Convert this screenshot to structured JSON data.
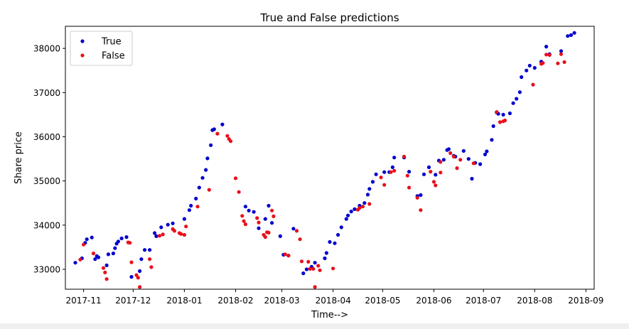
{
  "chart_data": {
    "type": "scatter",
    "title": "True and False predictions",
    "xlabel": "Time-->",
    "ylabel": "Share price",
    "xlim": [
      "2017-10-21",
      "2018-09-06"
    ],
    "ylim": [
      32550,
      38500
    ],
    "x_ticks": [
      "2017-11",
      "2017-12",
      "2018-01",
      "2018-02",
      "2018-03",
      "2018-04",
      "2018-05",
      "2018-06",
      "2018-07",
      "2018-08",
      "2018-09"
    ],
    "x_tick_dates": [
      "2017-11-01",
      "2017-12-01",
      "2018-01-01",
      "2018-02-01",
      "2018-03-01",
      "2018-04-01",
      "2018-05-01",
      "2018-06-01",
      "2018-07-01",
      "2018-08-01",
      "2018-09-01"
    ],
    "y_ticks": [
      33000,
      34000,
      35000,
      36000,
      37000,
      38000
    ],
    "grid": false,
    "legend": {
      "position": "top-left"
    },
    "series": [
      {
        "name": "True",
        "color": "#0000cc",
        "points": [
          [
            "2017-10-27",
            33150
          ],
          [
            "2017-10-31",
            33250
          ],
          [
            "2017-11-02",
            33600
          ],
          [
            "2017-11-03",
            33680
          ],
          [
            "2017-11-06",
            33720
          ],
          [
            "2017-11-08",
            33230
          ],
          [
            "2017-11-09",
            33300
          ],
          [
            "2017-11-10",
            33270
          ],
          [
            "2017-11-15",
            33090
          ],
          [
            "2017-11-16",
            33340
          ],
          [
            "2017-11-19",
            33360
          ],
          [
            "2017-11-20",
            33480
          ],
          [
            "2017-11-21",
            33580
          ],
          [
            "2017-11-22",
            33630
          ],
          [
            "2017-11-24",
            33700
          ],
          [
            "2017-11-27",
            33730
          ],
          [
            "2017-11-30",
            32830
          ],
          [
            "2017-12-05",
            32960
          ],
          [
            "2017-12-06",
            33230
          ],
          [
            "2017-12-08",
            33440
          ],
          [
            "2017-12-11",
            33440
          ],
          [
            "2017-12-14",
            33820
          ],
          [
            "2017-12-15",
            33750
          ],
          [
            "2017-12-18",
            33950
          ],
          [
            "2017-12-22",
            34010
          ],
          [
            "2017-12-25",
            34040
          ],
          [
            "2018-01-01",
            34140
          ],
          [
            "2018-01-04",
            34340
          ],
          [
            "2018-01-05",
            34440
          ],
          [
            "2018-01-08",
            34600
          ],
          [
            "2018-01-10",
            34850
          ],
          [
            "2018-01-12",
            35070
          ],
          [
            "2018-01-14",
            35250
          ],
          [
            "2018-01-15",
            35510
          ],
          [
            "2018-01-17",
            35810
          ],
          [
            "2018-01-18",
            36150
          ],
          [
            "2018-01-19",
            36170
          ],
          [
            "2018-01-24",
            36280
          ],
          [
            "2018-02-07",
            34420
          ],
          [
            "2018-02-09",
            34330
          ],
          [
            "2018-02-12",
            34300
          ],
          [
            "2018-02-15",
            33930
          ],
          [
            "2018-02-19",
            34140
          ],
          [
            "2018-02-21",
            34440
          ],
          [
            "2018-02-23",
            34050
          ],
          [
            "2018-02-28",
            33750
          ],
          [
            "2018-03-02",
            33330
          ],
          [
            "2018-03-05",
            33310
          ],
          [
            "2018-03-08",
            33920
          ],
          [
            "2018-03-14",
            32910
          ],
          [
            "2018-03-16",
            33000
          ],
          [
            "2018-03-19",
            33060
          ],
          [
            "2018-03-21",
            33150
          ],
          [
            "2018-03-27",
            33250
          ],
          [
            "2018-03-28",
            33370
          ],
          [
            "2018-03-30",
            33620
          ],
          [
            "2018-04-02",
            33590
          ],
          [
            "2018-04-04",
            33780
          ],
          [
            "2018-04-06",
            33950
          ],
          [
            "2018-04-09",
            34140
          ],
          [
            "2018-04-10",
            34220
          ],
          [
            "2018-04-12",
            34310
          ],
          [
            "2018-04-14",
            34360
          ],
          [
            "2018-04-17",
            34440
          ],
          [
            "2018-04-20",
            34500
          ],
          [
            "2018-04-22",
            34690
          ],
          [
            "2018-04-23",
            34820
          ],
          [
            "2018-04-25",
            34980
          ],
          [
            "2018-04-27",
            35150
          ],
          [
            "2018-05-02",
            35200
          ],
          [
            "2018-05-05",
            35200
          ],
          [
            "2018-05-07",
            35310
          ],
          [
            "2018-05-08",
            35530
          ],
          [
            "2018-05-14",
            35530
          ],
          [
            "2018-05-17",
            35210
          ],
          [
            "2018-05-22",
            34660
          ],
          [
            "2018-05-24",
            34680
          ],
          [
            "2018-05-26",
            35150
          ],
          [
            "2018-05-29",
            35310
          ],
          [
            "2018-06-02",
            35140
          ],
          [
            "2018-06-04",
            35460
          ],
          [
            "2018-06-07",
            35480
          ],
          [
            "2018-06-09",
            35700
          ],
          [
            "2018-06-10",
            35720
          ],
          [
            "2018-06-13",
            35570
          ],
          [
            "2018-06-14",
            35550
          ],
          [
            "2018-06-19",
            35680
          ],
          [
            "2018-06-22",
            35500
          ],
          [
            "2018-06-24",
            35050
          ],
          [
            "2018-06-26",
            35410
          ],
          [
            "2018-06-29",
            35380
          ],
          [
            "2018-07-02",
            35600
          ],
          [
            "2018-07-03",
            35670
          ],
          [
            "2018-07-06",
            35930
          ],
          [
            "2018-07-07",
            36240
          ],
          [
            "2018-07-09",
            36550
          ],
          [
            "2018-07-10",
            36520
          ],
          [
            "2018-07-13",
            36500
          ],
          [
            "2018-07-17",
            36530
          ],
          [
            "2018-07-19",
            36760
          ],
          [
            "2018-07-21",
            36860
          ],
          [
            "2018-07-23",
            37010
          ],
          [
            "2018-07-24",
            37350
          ],
          [
            "2018-07-27",
            37500
          ],
          [
            "2018-07-29",
            37610
          ],
          [
            "2018-08-01",
            37560
          ],
          [
            "2018-08-05",
            37700
          ],
          [
            "2018-08-08",
            38040
          ],
          [
            "2018-08-10",
            37870
          ],
          [
            "2018-08-17",
            37940
          ],
          [
            "2018-08-21",
            38280
          ],
          [
            "2018-08-23",
            38300
          ],
          [
            "2018-08-25",
            38350
          ]
        ]
      },
      {
        "name": "False",
        "color": "#e8101c",
        "points": [
          [
            "2017-10-30",
            33220
          ],
          [
            "2017-11-01",
            33560
          ],
          [
            "2017-11-07",
            33360
          ],
          [
            "2017-11-13",
            33030
          ],
          [
            "2017-11-14",
            32930
          ],
          [
            "2017-11-15",
            32780
          ],
          [
            "2017-11-28",
            33610
          ],
          [
            "2017-11-29",
            33600
          ],
          [
            "2017-11-30",
            33160
          ],
          [
            "2017-12-03",
            32870
          ],
          [
            "2017-12-04",
            32810
          ],
          [
            "2017-12-05",
            32600
          ],
          [
            "2017-12-11",
            33230
          ],
          [
            "2017-12-12",
            33050
          ],
          [
            "2017-12-17",
            33760
          ],
          [
            "2017-12-19",
            33790
          ],
          [
            "2017-12-25",
            33910
          ],
          [
            "2017-12-26",
            33870
          ],
          [
            "2017-12-29",
            33820
          ],
          [
            "2017-12-30",
            33800
          ],
          [
            "2018-01-01",
            33780
          ],
          [
            "2018-01-02",
            33970
          ],
          [
            "2018-01-09",
            34420
          ],
          [
            "2018-01-16",
            34800
          ],
          [
            "2018-01-21",
            36070
          ],
          [
            "2018-01-27",
            36020
          ],
          [
            "2018-01-28",
            35950
          ],
          [
            "2018-01-29",
            35900
          ],
          [
            "2018-02-01",
            35060
          ],
          [
            "2018-02-03",
            34750
          ],
          [
            "2018-02-05",
            34210
          ],
          [
            "2018-02-06",
            34090
          ],
          [
            "2018-02-07",
            34020
          ],
          [
            "2018-02-14",
            34160
          ],
          [
            "2018-02-15",
            34060
          ],
          [
            "2018-02-18",
            33780
          ],
          [
            "2018-02-19",
            33730
          ],
          [
            "2018-02-20",
            33840
          ],
          [
            "2018-02-21",
            33830
          ],
          [
            "2018-02-23",
            34330
          ],
          [
            "2018-02-24",
            34200
          ],
          [
            "2018-03-03",
            33340
          ],
          [
            "2018-03-05",
            33310
          ],
          [
            "2018-03-10",
            33870
          ],
          [
            "2018-03-12",
            33680
          ],
          [
            "2018-03-13",
            33180
          ],
          [
            "2018-03-17",
            33170
          ],
          [
            "2018-03-18",
            33010
          ],
          [
            "2018-03-20",
            33010
          ],
          [
            "2018-03-21",
            32600
          ],
          [
            "2018-03-23",
            33080
          ],
          [
            "2018-03-24",
            32980
          ],
          [
            "2018-04-01",
            33020
          ],
          [
            "2018-04-16",
            34350
          ],
          [
            "2018-04-17",
            34390
          ],
          [
            "2018-04-19",
            34420
          ],
          [
            "2018-04-23",
            34480
          ],
          [
            "2018-04-30",
            35080
          ],
          [
            "2018-05-02",
            34910
          ],
          [
            "2018-05-06",
            35200
          ],
          [
            "2018-05-08",
            35230
          ],
          [
            "2018-05-14",
            35550
          ],
          [
            "2018-05-16",
            35120
          ],
          [
            "2018-05-17",
            34850
          ],
          [
            "2018-05-22",
            34620
          ],
          [
            "2018-05-24",
            34340
          ],
          [
            "2018-05-30",
            35210
          ],
          [
            "2018-06-01",
            34980
          ],
          [
            "2018-06-02",
            34900
          ],
          [
            "2018-06-05",
            35190
          ],
          [
            "2018-06-05",
            35430
          ],
          [
            "2018-06-11",
            35630
          ],
          [
            "2018-06-13",
            35550
          ],
          [
            "2018-06-15",
            35290
          ],
          [
            "2018-06-17",
            35480
          ],
          [
            "2018-06-25",
            35400
          ],
          [
            "2018-07-09",
            36560
          ],
          [
            "2018-07-11",
            36330
          ],
          [
            "2018-07-13",
            36350
          ],
          [
            "2018-07-14",
            36370
          ],
          [
            "2018-07-31",
            37180
          ],
          [
            "2018-08-05",
            37650
          ],
          [
            "2018-08-06",
            37670
          ],
          [
            "2018-08-08",
            37860
          ],
          [
            "2018-08-10",
            37850
          ],
          [
            "2018-08-15",
            37660
          ],
          [
            "2018-08-17",
            37870
          ],
          [
            "2018-08-19",
            37690
          ]
        ]
      }
    ]
  }
}
